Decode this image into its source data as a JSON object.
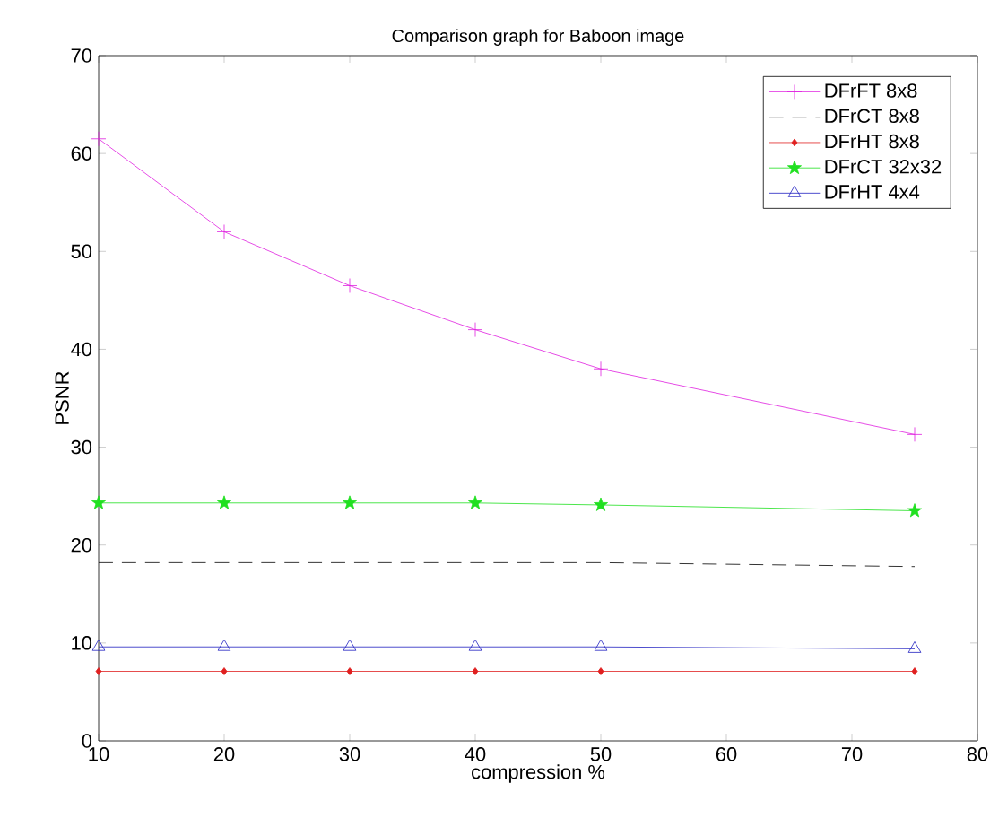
{
  "chart_data": {
    "type": "line",
    "title": "Comparison graph for Baboon image",
    "xlabel": "compression %",
    "ylabel": "PSNR",
    "x": [
      10,
      20,
      30,
      40,
      50,
      75
    ],
    "series": [
      {
        "name": "DFrFT 8x8",
        "color": "#e020e0",
        "marker": "cross",
        "line_style": "solid",
        "values": [
          61.5,
          52,
          46.5,
          42,
          38,
          31.3
        ]
      },
      {
        "name": "DFrCT 8x8",
        "color": "#000000",
        "marker": "none",
        "line_style": "dashed",
        "values": [
          18.2,
          18.2,
          18.2,
          18.2,
          18.2,
          17.8
        ]
      },
      {
        "name": "DFrHT 8x8",
        "color": "#e02020",
        "marker": "diamond",
        "line_style": "solid",
        "values": [
          7.1,
          7.1,
          7.1,
          7.1,
          7.1,
          7.1
        ]
      },
      {
        "name": "DFrCT 32x32",
        "color": "#20e020",
        "marker": "star",
        "line_style": "solid",
        "values": [
          24.3,
          24.3,
          24.3,
          24.3,
          24.1,
          23.5
        ]
      },
      {
        "name": "DFrHT 4x4",
        "color": "#2020c0",
        "marker": "triangle",
        "line_style": "solid",
        "values": [
          9.6,
          9.6,
          9.6,
          9.6,
          9.6,
          9.4
        ]
      }
    ],
    "xlim": [
      10,
      80
    ],
    "xticks": [
      10,
      20,
      30,
      40,
      50,
      60,
      70,
      80
    ],
    "ylim": [
      0,
      70
    ],
    "yticks": [
      0,
      10,
      20,
      30,
      40,
      50,
      60,
      70
    ],
    "grid": false,
    "legend": "top right"
  }
}
